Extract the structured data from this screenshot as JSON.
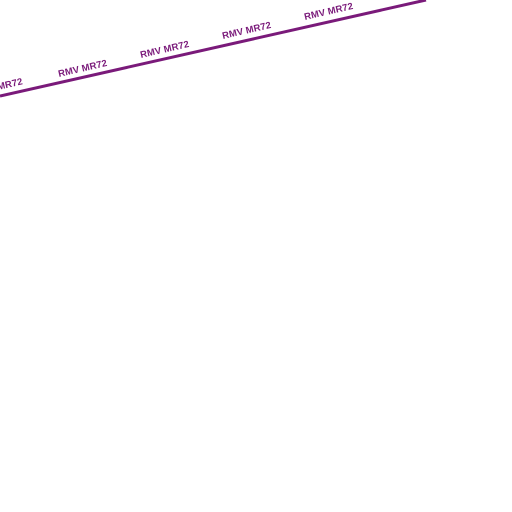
{
  "map": {
    "route_line": {
      "label": "RMV MR72",
      "color": "#7a1a7a"
    },
    "labels": [
      {
        "text": "MR72"
      },
      {
        "text": "RMV MR72"
      },
      {
        "text": "RMV MR72"
      },
      {
        "text": "RMV MR72"
      },
      {
        "text": "RMV MR72"
      }
    ]
  }
}
